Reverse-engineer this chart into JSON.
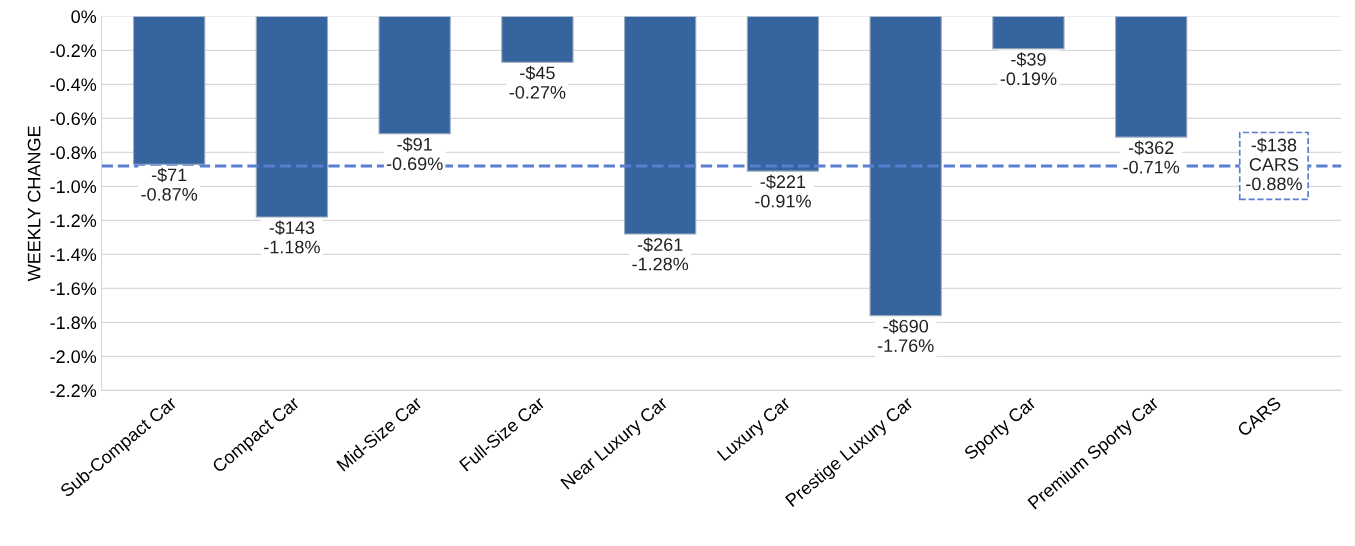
{
  "chart_data": {
    "type": "bar",
    "ylabel": "WEEKLY CHANGE",
    "categories": [
      "Sub-Compact Car",
      "Compact Car",
      "Mid-Size Car",
      "Full-Size Car",
      "Near Luxury Car",
      "Luxury Car",
      "Prestige Luxury Car",
      "Sporty Car",
      "Premium Sporty Car",
      "CARS"
    ],
    "values": [
      -0.87,
      -1.18,
      -0.69,
      -0.27,
      -1.28,
      -0.91,
      -1.76,
      -0.19,
      -0.71,
      null
    ],
    "value_labels": [
      "-$71\n-0.87%",
      "-$143\n-1.18%",
      "-$91\n-0.69%",
      "-$45\n-0.27%",
      "-$261\n-1.28%",
      "-$221\n-0.91%",
      "-$690\n-1.76%",
      "-$39\n-0.19%",
      "-$362\n-0.71%",
      null
    ],
    "color": "#36649f",
    "ylim": [
      -2.2,
      0
    ],
    "yticks": [
      {
        "value": 0,
        "label": "0%"
      },
      {
        "value": -0.2,
        "label": "-0.2%"
      },
      {
        "value": -0.4,
        "label": "-0.4%"
      },
      {
        "value": -0.6,
        "label": "-0.6%"
      },
      {
        "value": -0.8,
        "label": "-0.8%"
      },
      {
        "value": -1.0,
        "label": "-1.0%"
      },
      {
        "value": -1.2,
        "label": "-1.2%"
      },
      {
        "value": -1.4,
        "label": "-1.4%"
      },
      {
        "value": -1.6,
        "label": "-1.6%"
      },
      {
        "value": -1.8,
        "label": "-1.8%"
      },
      {
        "value": -2.0,
        "label": "-2.0%"
      },
      {
        "value": -2.2,
        "label": "-2.2%"
      }
    ],
    "ref_lines": [
      {
        "axis": "y",
        "value": -0.88,
        "label": "-$138\nCARS\n-0.88%",
        "color": "#5b7fd0",
        "line_style": "dashed"
      }
    ],
    "grid": "y"
  }
}
